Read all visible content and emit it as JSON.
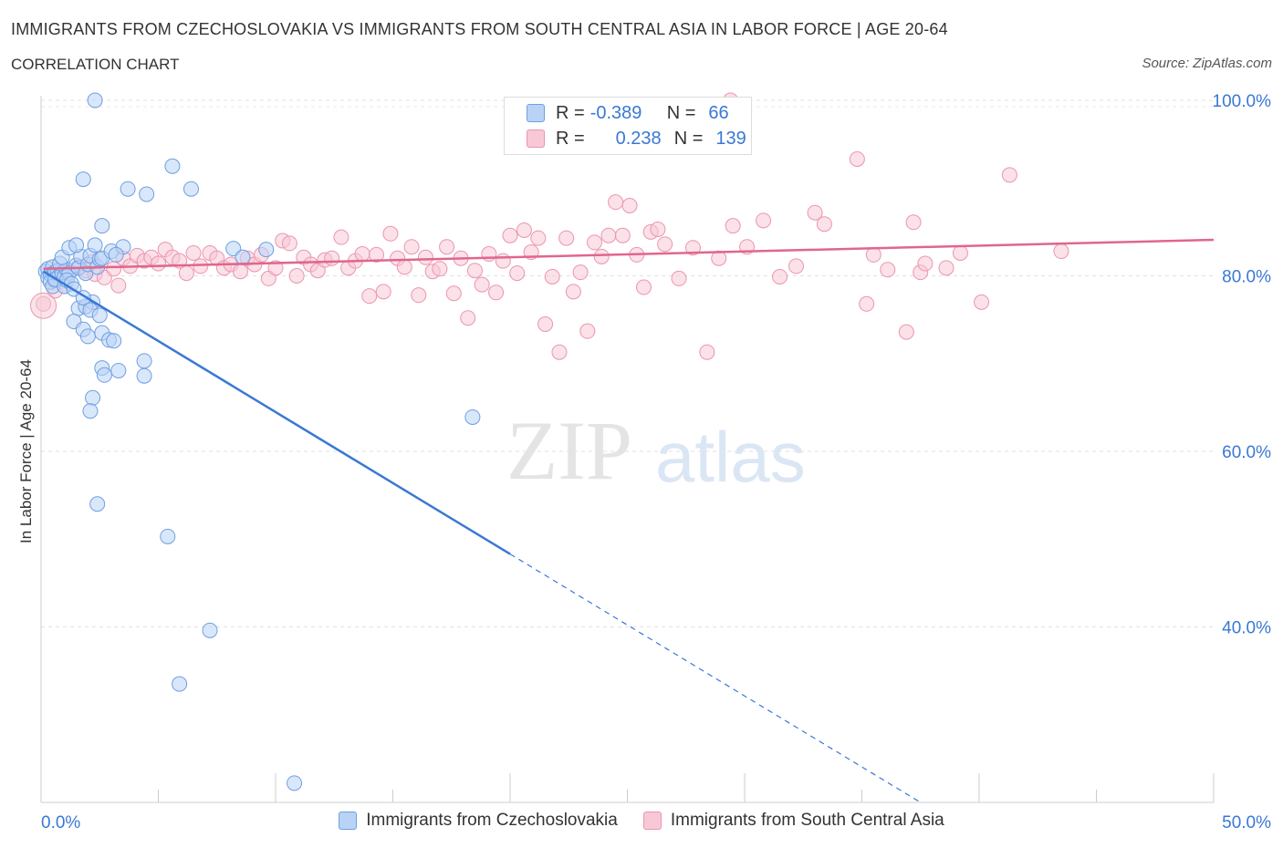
{
  "title": "IMMIGRANTS FROM CZECHOSLOVAKIA VS IMMIGRANTS FROM SOUTH CENTRAL ASIA IN LABOR FORCE | AGE 20-64",
  "subtitle": "CORRELATION CHART",
  "source": "Source: ZipAtlas.com",
  "watermark": {
    "zip": "ZIP",
    "atlas": "atlas"
  },
  "legend_top": {
    "rows": [
      {
        "r_label": "R =",
        "r_value": "-0.389",
        "n_label": "N =",
        "n_value": "66",
        "fill": "#b9d3f7",
        "stroke": "#6f9fe0"
      },
      {
        "r_label": "R =",
        "r_value": "0.238",
        "n_label": "N =",
        "n_value": "139",
        "fill": "#f8c8d6",
        "stroke": "#eb95b0"
      }
    ]
  },
  "chart_data": {
    "type": "scatter",
    "title": "IMMIGRANTS FROM CZECHOSLOVAKIA VS IMMIGRANTS FROM SOUTH CENTRAL ASIA IN LABOR FORCE | AGE 20-64",
    "subtitle": "CORRELATION CHART",
    "xlabel": "",
    "ylabel": "In Labor Force | Age 20-64",
    "xlim": [
      0,
      50
    ],
    "ylim": [
      20,
      100
    ],
    "x_tick_labels": [
      {
        "value": 0,
        "label": "0.0%"
      },
      {
        "value": 50,
        "label": "50.0%"
      }
    ],
    "y_tick_labels": [
      {
        "value": 100,
        "label": "100.0%"
      },
      {
        "value": 80,
        "label": "80.0%"
      },
      {
        "value": 60,
        "label": "60.0%"
      },
      {
        "value": 40,
        "label": "40.0%"
      }
    ],
    "grid": true,
    "legend_position": "bottom",
    "series": [
      {
        "name": "Immigrants from Czechoslovakia",
        "color": "#6f9fe0",
        "fill": "#b9d3f7",
        "trend": {
          "x": [
            0.1,
            20.0
          ],
          "y": [
            80.5,
            48.3
          ],
          "dashed_to": {
            "x": 37.5,
            "y": 20.0
          },
          "color": "#3a78d4"
        },
        "points": [
          [
            0.2,
            80.5
          ],
          [
            0.3,
            79.8
          ],
          [
            0.3,
            80.8
          ],
          [
            0.4,
            80.2
          ],
          [
            0.4,
            79.3
          ],
          [
            0.5,
            81.0
          ],
          [
            0.6,
            80.4
          ],
          [
            0.6,
            79.5
          ],
          [
            0.7,
            80.6
          ],
          [
            0.8,
            80.1
          ],
          [
            0.5,
            78.8
          ],
          [
            0.6,
            79.6
          ],
          [
            0.9,
            80.3
          ],
          [
            1.0,
            79.9
          ],
          [
            1.1,
            80.7
          ],
          [
            1.2,
            80.3
          ],
          [
            0.8,
            81.4
          ],
          [
            0.9,
            82.1
          ],
          [
            1.0,
            78.8
          ],
          [
            1.1,
            79.5
          ],
          [
            1.3,
            79.1
          ],
          [
            1.4,
            78.5
          ],
          [
            1.5,
            81.2
          ],
          [
            1.6,
            80.9
          ],
          [
            1.7,
            82.2
          ],
          [
            1.9,
            80.3
          ],
          [
            2.0,
            81.3
          ],
          [
            1.2,
            83.2
          ],
          [
            1.5,
            83.5
          ],
          [
            2.1,
            82.3
          ],
          [
            2.4,
            81.0
          ],
          [
            2.5,
            81.9
          ],
          [
            2.2,
            77.0
          ],
          [
            1.6,
            76.3
          ],
          [
            1.9,
            76.5
          ],
          [
            1.8,
            77.5
          ],
          [
            2.1,
            76.1
          ],
          [
            2.5,
            75.5
          ],
          [
            1.4,
            74.8
          ],
          [
            1.8,
            73.9
          ],
          [
            2.0,
            73.1
          ],
          [
            2.6,
            73.5
          ],
          [
            2.9,
            72.7
          ],
          [
            3.1,
            72.6
          ],
          [
            2.6,
            69.5
          ],
          [
            2.7,
            68.7
          ],
          [
            3.3,
            69.2
          ],
          [
            4.4,
            70.3
          ],
          [
            4.4,
            68.6
          ],
          [
            2.2,
            66.1
          ],
          [
            2.1,
            64.6
          ],
          [
            2.3,
            83.5
          ],
          [
            2.6,
            82.0
          ],
          [
            3.0,
            82.8
          ],
          [
            3.5,
            83.3
          ],
          [
            3.2,
            82.4
          ],
          [
            2.6,
            85.7
          ],
          [
            1.8,
            91.0
          ],
          [
            3.7,
            89.9
          ],
          [
            4.5,
            89.3
          ],
          [
            5.6,
            92.5
          ],
          [
            6.4,
            89.9
          ],
          [
            8.2,
            83.1
          ],
          [
            8.6,
            82.1
          ],
          [
            9.6,
            83.0
          ],
          [
            18.4,
            63.9
          ],
          [
            2.4,
            54.0
          ],
          [
            5.4,
            50.3
          ],
          [
            7.2,
            39.6
          ],
          [
            5.9,
            33.5
          ],
          [
            10.8,
            22.2
          ],
          [
            2.3,
            100.0
          ]
        ]
      },
      {
        "name": "Immigrants from South Central Asia",
        "color": "#eb95b0",
        "fill": "#f8c8d6",
        "trend": {
          "x": [
            0.1,
            50.0
          ],
          "y": [
            80.8,
            84.1
          ],
          "color": "#e0668e"
        },
        "points": [
          [
            0.1,
            76.8
          ],
          [
            0.6,
            78.3
          ],
          [
            1.0,
            78.8
          ],
          [
            1.2,
            80.5
          ],
          [
            1.6,
            81.0
          ],
          [
            1.9,
            80.6
          ],
          [
            2.2,
            81.6
          ],
          [
            2.3,
            80.2
          ],
          [
            2.7,
            79.8
          ],
          [
            3.1,
            80.8
          ],
          [
            3.3,
            78.9
          ],
          [
            3.5,
            82.0
          ],
          [
            3.8,
            81.1
          ],
          [
            4.1,
            82.3
          ],
          [
            4.4,
            81.7
          ],
          [
            4.7,
            82.1
          ],
          [
            5.0,
            81.4
          ],
          [
            5.3,
            83.0
          ],
          [
            5.6,
            82.1
          ],
          [
            5.9,
            81.7
          ],
          [
            6.2,
            80.3
          ],
          [
            6.5,
            82.6
          ],
          [
            6.8,
            81.1
          ],
          [
            7.2,
            82.6
          ],
          [
            7.5,
            82.0
          ],
          [
            7.8,
            80.9
          ],
          [
            8.1,
            81.3
          ],
          [
            8.5,
            80.5
          ],
          [
            8.8,
            82.0
          ],
          [
            9.1,
            81.3
          ],
          [
            9.4,
            82.4
          ],
          [
            9.7,
            79.7
          ],
          [
            10.0,
            80.9
          ],
          [
            10.3,
            84.0
          ],
          [
            10.6,
            83.7
          ],
          [
            10.9,
            80.0
          ],
          [
            11.2,
            82.1
          ],
          [
            11.5,
            81.3
          ],
          [
            11.8,
            80.6
          ],
          [
            12.1,
            81.8
          ],
          [
            12.4,
            82.0
          ],
          [
            12.8,
            84.4
          ],
          [
            13.1,
            80.9
          ],
          [
            13.4,
            81.7
          ],
          [
            13.7,
            82.5
          ],
          [
            14.0,
            77.7
          ],
          [
            14.3,
            82.4
          ],
          [
            14.6,
            78.2
          ],
          [
            14.9,
            84.8
          ],
          [
            15.2,
            82.0
          ],
          [
            15.5,
            81.0
          ],
          [
            15.8,
            83.3
          ],
          [
            16.1,
            77.8
          ],
          [
            16.4,
            82.1
          ],
          [
            16.7,
            80.5
          ],
          [
            17.0,
            80.8
          ],
          [
            17.3,
            83.3
          ],
          [
            17.6,
            78.0
          ],
          [
            17.9,
            82.0
          ],
          [
            18.2,
            75.2
          ],
          [
            18.5,
            80.6
          ],
          [
            18.8,
            79.0
          ],
          [
            19.1,
            82.5
          ],
          [
            19.4,
            78.1
          ],
          [
            19.7,
            81.7
          ],
          [
            20.0,
            84.6
          ],
          [
            20.3,
            80.3
          ],
          [
            20.6,
            85.2
          ],
          [
            20.9,
            82.7
          ],
          [
            21.2,
            84.3
          ],
          [
            21.5,
            74.5
          ],
          [
            21.8,
            79.9
          ],
          [
            22.1,
            71.3
          ],
          [
            22.4,
            84.3
          ],
          [
            22.7,
            78.2
          ],
          [
            23.0,
            80.4
          ],
          [
            23.3,
            73.7
          ],
          [
            23.6,
            83.8
          ],
          [
            23.9,
            82.2
          ],
          [
            24.2,
            84.6
          ],
          [
            24.5,
            88.4
          ],
          [
            24.8,
            84.6
          ],
          [
            25.1,
            88.0
          ],
          [
            25.4,
            82.4
          ],
          [
            25.7,
            78.7
          ],
          [
            26.0,
            85.0
          ],
          [
            26.3,
            85.3
          ],
          [
            26.6,
            83.6
          ],
          [
            27.2,
            79.7
          ],
          [
            27.8,
            83.2
          ],
          [
            28.4,
            71.3
          ],
          [
            28.9,
            82.0
          ],
          [
            29.5,
            85.7
          ],
          [
            30.1,
            83.3
          ],
          [
            30.8,
            86.3
          ],
          [
            31.5,
            79.9
          ],
          [
            32.2,
            81.1
          ],
          [
            33.0,
            87.2
          ],
          [
            33.4,
            85.9
          ],
          [
            34.8,
            93.3
          ],
          [
            35.2,
            76.8
          ],
          [
            35.5,
            82.4
          ],
          [
            36.1,
            80.7
          ],
          [
            36.9,
            73.6
          ],
          [
            37.2,
            86.1
          ],
          [
            37.5,
            80.4
          ],
          [
            37.7,
            81.4
          ],
          [
            38.6,
            80.9
          ],
          [
            39.2,
            82.6
          ],
          [
            40.1,
            77.0
          ],
          [
            41.3,
            91.5
          ],
          [
            43.5,
            82.8
          ],
          [
            29.4,
            100.0
          ]
        ]
      }
    ]
  }
}
